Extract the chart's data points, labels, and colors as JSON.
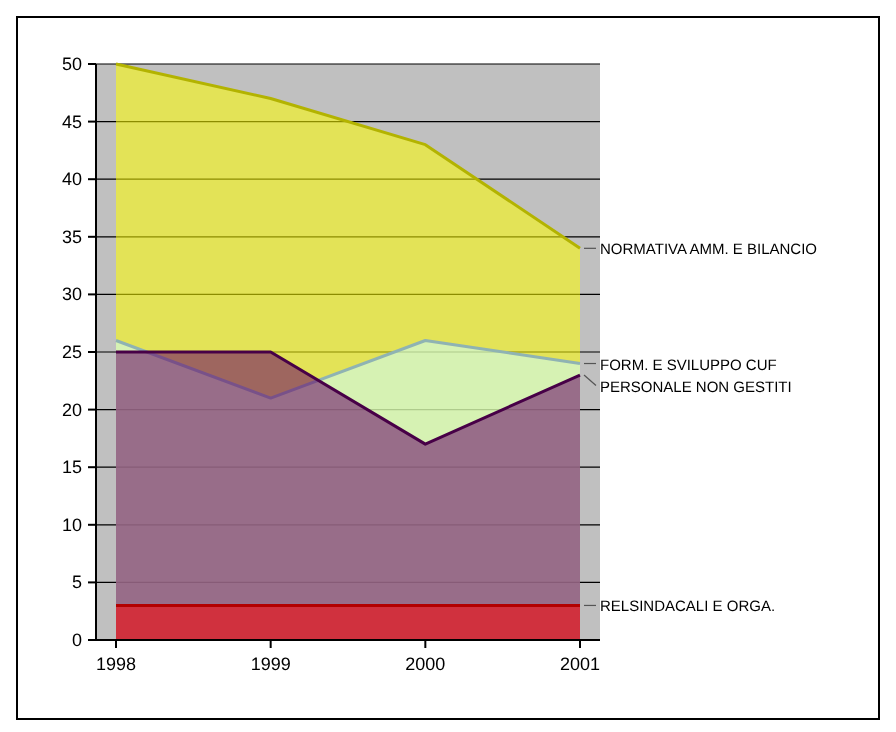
{
  "chart_data": {
    "type": "area",
    "categories": [
      "1998",
      "1999",
      "2000",
      "2001"
    ],
    "series": [
      {
        "name": "RELSINDACALI E ORGA.",
        "color": "#ff0000",
        "values": [
          3,
          3,
          3,
          3
        ]
      },
      {
        "name": "PERSONALE NON GESTITI",
        "color": "#660066",
        "values": [
          25,
          25,
          17,
          23
        ]
      },
      {
        "name": "FORM. E SVILUPPO CUF",
        "color": "#ccffff",
        "values": [
          26,
          21,
          26,
          24
        ]
      },
      {
        "name": "NORMATIVA AMM. E BILANCIO",
        "color": "#ffff00",
        "values": [
          50,
          47,
          43,
          34
        ]
      }
    ],
    "ylim": [
      0,
      50
    ],
    "yticks": [
      0,
      5,
      10,
      15,
      20,
      25,
      30,
      35,
      40,
      45,
      50
    ],
    "grid": true
  }
}
